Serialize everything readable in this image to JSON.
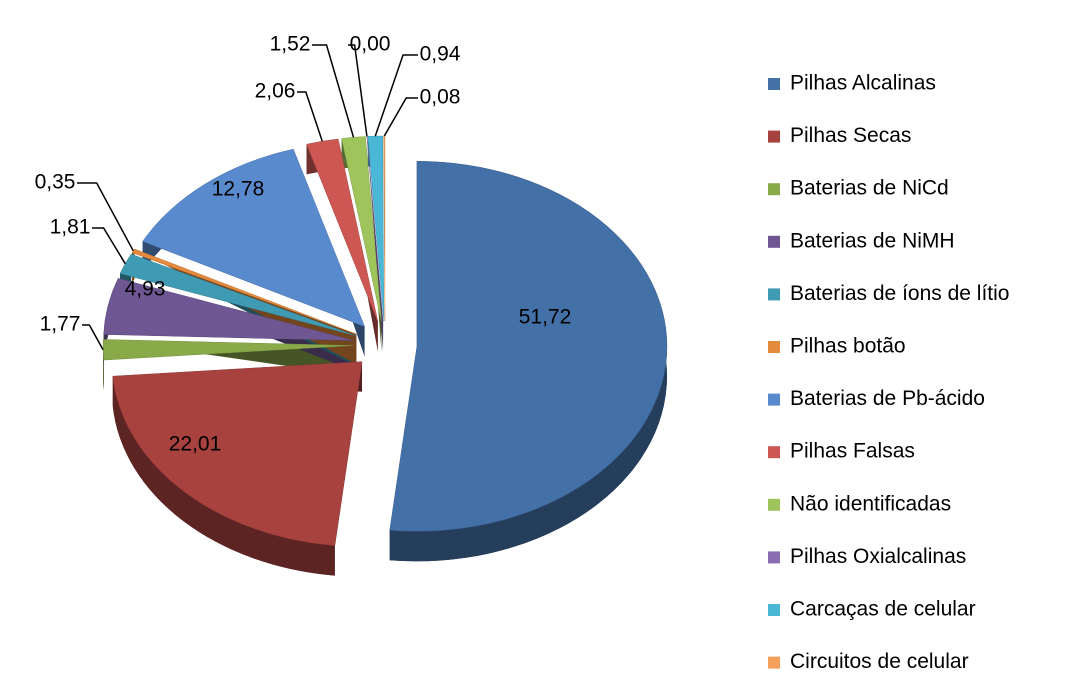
{
  "chart_data": {
    "type": "pie",
    "categories": [
      "Pilhas Alcalinas",
      "Pilhas Secas",
      "Baterias de NiCd",
      "Baterias de NiMH",
      "Baterias de íons de lítio",
      "Pilhas botão",
      "Baterias de Pb-ácido",
      "Pilhas Falsas",
      "Não identificadas",
      "Pilhas Oxialcalinas",
      "Carcaças de celular",
      "Circuitos de celular"
    ],
    "values": [
      51.72,
      22.01,
      1.77,
      4.93,
      1.81,
      0.35,
      12.78,
      2.06,
      1.52,
      0.0,
      0.94,
      0.08
    ],
    "value_labels": [
      "51,72",
      "22,01",
      "1,77",
      "4,93",
      "1,81",
      "0,35",
      "12,78",
      "2,06",
      "1,52",
      "0,00",
      "0,94",
      "0,08"
    ],
    "colors": [
      "#4470a8",
      "#a8423f",
      "#8aaa4a",
      "#6f5793",
      "#3f9bb3",
      "#e38a3c",
      "#5a8ace",
      "#cc5753",
      "#9fc45c",
      "#8a6db0",
      "#4bb7d6",
      "#f5a05a"
    ],
    "legend": "right"
  }
}
